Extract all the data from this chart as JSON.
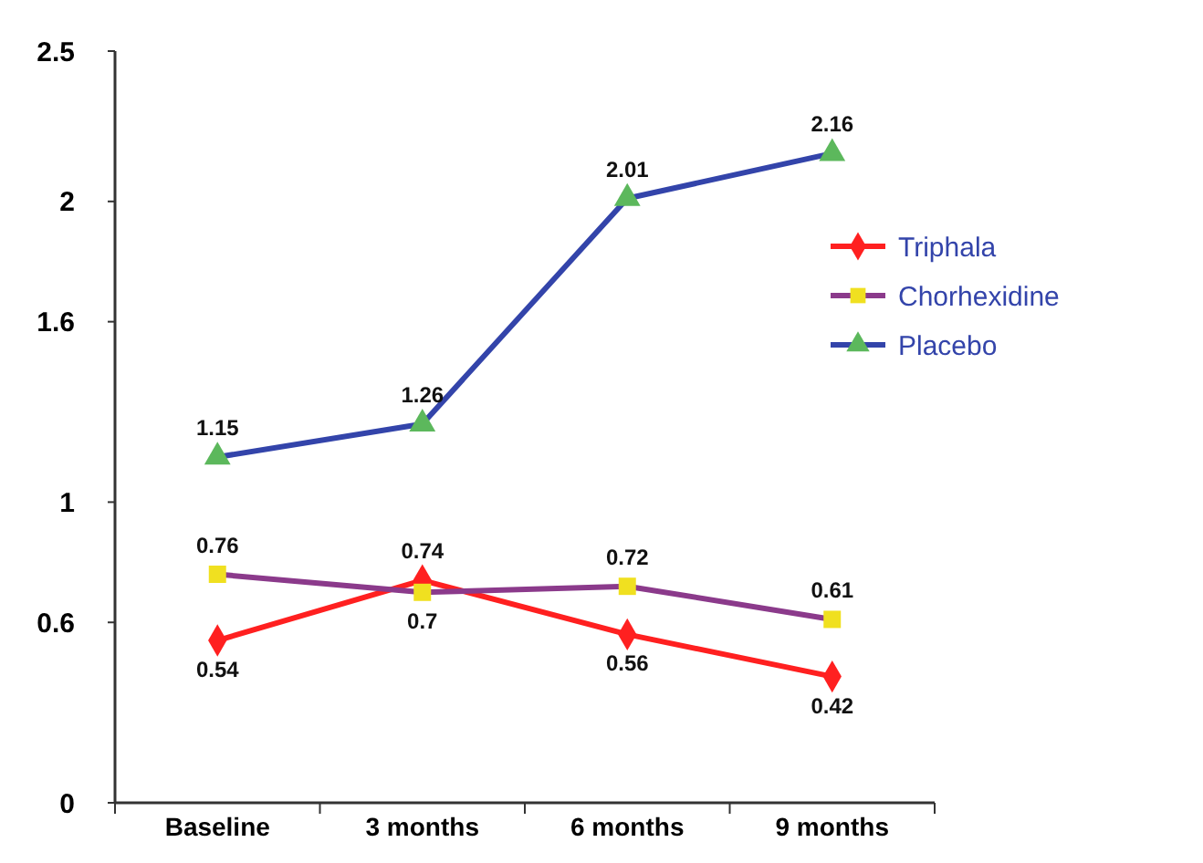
{
  "chart_data": {
    "type": "line",
    "categories": [
      "Baseline",
      "3 months",
      "6 months",
      "9 months"
    ],
    "series": [
      {
        "name": "Triphala",
        "color": "#ff2020",
        "marker": "diamond",
        "colors": [
          "#ff2020",
          "#ff2020",
          "#ff2020",
          "#ff2020"
        ],
        "values": [
          0.54,
          0.74,
          0.56,
          0.42
        ]
      },
      {
        "name": "Chorhexidine",
        "color": "#8b3a8b",
        "marker": "square",
        "colors": [
          "#f0e020",
          "#f0e020",
          "#f0e020",
          "#f0e020"
        ],
        "values": [
          0.76,
          0.7,
          0.72,
          0.61
        ]
      },
      {
        "name": "Placebo",
        "color": "#3344aa",
        "marker": "triangle",
        "colors": [
          "#5cb85c",
          "#5cb85c",
          "#5cb85c",
          "#5cb85c"
        ],
        "values": [
          1.15,
          1.26,
          2.01,
          2.16
        ]
      }
    ],
    "ylim": [
      0,
      2.5
    ],
    "yticks": [
      0,
      0.6,
      1,
      1.6,
      2,
      2.5
    ],
    "grid": false,
    "legend": "right",
    "data_labels": true
  }
}
